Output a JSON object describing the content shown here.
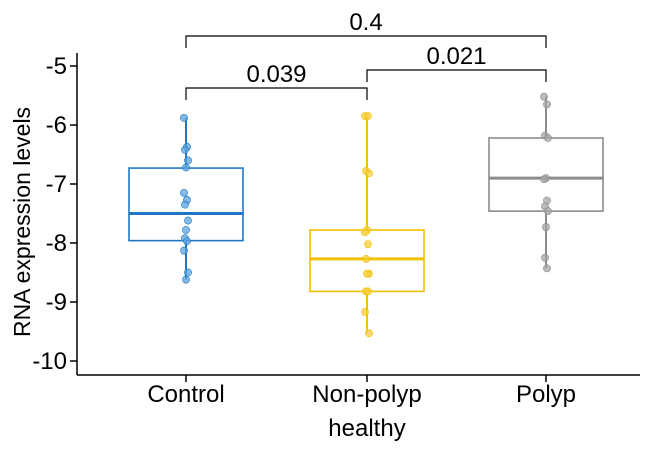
{
  "chart_data": {
    "type": "box",
    "xlabel": "",
    "ylabel": "RNA expression levels",
    "ylim": [
      -10.2,
      -4.8
    ],
    "yticks": [
      -10,
      -9,
      -8,
      -7,
      -6,
      -5
    ],
    "ytick_labels": [
      "-10",
      "-9",
      "-8",
      "-7",
      "-6",
      "-5"
    ],
    "categories": [
      "Control",
      "Non-polyp healthy",
      "Polyp"
    ],
    "category_lines": [
      [
        "Control"
      ],
      [
        "Non-polyp",
        "healthy"
      ],
      [
        "Polyp"
      ]
    ],
    "grid": false,
    "legend": "none",
    "series": [
      {
        "category": "Control",
        "color": "#1f77c4",
        "fill": "#5ba3dd",
        "whisker_low": -8.62,
        "q1": -7.96,
        "median": -7.5,
        "q3": -6.73,
        "whisker_high": -5.88,
        "points": [
          -5.88,
          -6.37,
          -6.42,
          -6.6,
          -6.72,
          -7.15,
          -7.27,
          -7.35,
          -7.62,
          -7.78,
          -7.92,
          -7.97,
          -8.13,
          -8.5,
          -8.62
        ]
      },
      {
        "category": "Non-polyp healthy",
        "color": "#f1c000",
        "fill": "#f5cf3a",
        "whisker_low": -9.53,
        "q1": -8.82,
        "median": -8.27,
        "q3": -7.78,
        "whisker_high": -5.85,
        "points": [
          -5.85,
          -5.85,
          -6.78,
          -6.82,
          -7.78,
          -7.82,
          -8.02,
          -8.27,
          -8.52,
          -8.52,
          -8.82,
          -8.82,
          -9.17,
          -9.53
        ]
      },
      {
        "category": "Polyp",
        "color": "#8c8c8c",
        "fill": "#a6a6a6",
        "whisker_low": -8.43,
        "q1": -7.46,
        "median": -6.9,
        "q3": -6.22,
        "whisker_high": -5.52,
        "points": [
          -5.52,
          -5.65,
          -6.18,
          -6.22,
          -6.9,
          -6.92,
          -7.28,
          -7.38,
          -7.46,
          -7.73,
          -8.25,
          -8.43
        ]
      }
    ],
    "comparisons": [
      {
        "from": 0,
        "to": 2,
        "label": "0.4"
      },
      {
        "from": 0,
        "to": 1,
        "label": "0.039"
      },
      {
        "from": 1,
        "to": 2,
        "label": "0.021"
      }
    ]
  }
}
